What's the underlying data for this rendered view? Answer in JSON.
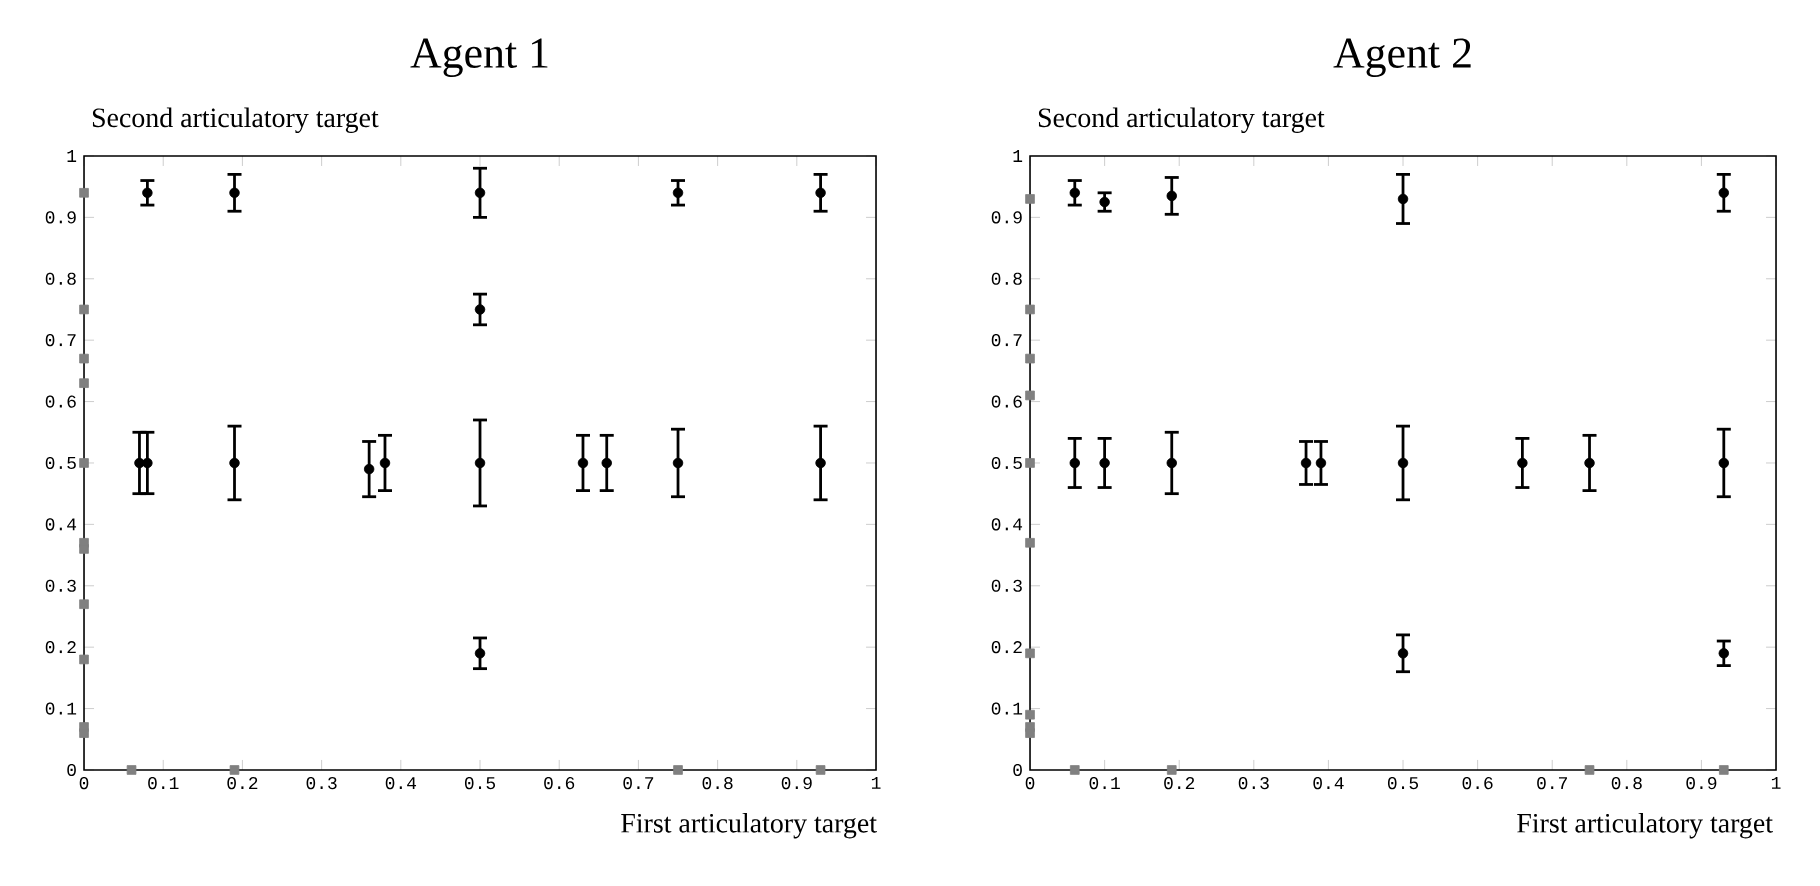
{
  "chart_data": [
    {
      "type": "scatter",
      "title": "Agent 1",
      "xlabel": "First articulatory target",
      "ylabel": "Second articulatory target",
      "xlim": [
        0,
        1
      ],
      "ylim": [
        0,
        1
      ],
      "xticks": [
        0,
        0.1,
        0.2,
        0.3,
        0.4,
        0.5,
        0.6,
        0.7,
        0.8,
        0.9,
        1
      ],
      "yticks": [
        0,
        0.1,
        0.2,
        0.3,
        0.4,
        0.5,
        0.6,
        0.7,
        0.8,
        0.9,
        1
      ],
      "grid": false,
      "legend": false,
      "series": [
        {
          "color": "#000000",
          "marker": "circle",
          "x": [
            0.07,
            0.08,
            0.08,
            0.19,
            0.19,
            0.36,
            0.38,
            0.5,
            0.5,
            0.5,
            0.5,
            0.63,
            0.66,
            0.75,
            0.75,
            0.93,
            0.93
          ],
          "values": [
            0.5,
            0.5,
            0.94,
            0.94,
            0.5,
            0.49,
            0.5,
            0.94,
            0.75,
            0.5,
            0.19,
            0.5,
            0.5,
            0.94,
            0.5,
            0.94,
            0.5
          ],
          "errors": [
            0.05,
            0.05,
            0.02,
            0.03,
            0.06,
            0.045,
            0.045,
            0.04,
            0.025,
            0.07,
            0.025,
            0.045,
            0.045,
            0.02,
            0.055,
            0.03,
            0.06
          ]
        },
        {
          "color": "#808080",
          "marker": "square",
          "x": [
            0,
            0,
            0,
            0,
            0,
            0,
            0,
            0,
            0,
            0,
            0,
            0.06,
            0.19,
            0.75,
            0.93
          ],
          "values": [
            0.94,
            0.75,
            0.67,
            0.63,
            0.5,
            0.37,
            0.36,
            0.27,
            0.18,
            0.07,
            0.06,
            0,
            0,
            0,
            0
          ]
        }
      ]
    },
    {
      "type": "scatter",
      "title": "Agent 2",
      "xlabel": "First articulatory target",
      "ylabel": "Second articulatory target",
      "xlim": [
        0,
        1
      ],
      "ylim": [
        0,
        1
      ],
      "xticks": [
        0,
        0.1,
        0.2,
        0.3,
        0.4,
        0.5,
        0.6,
        0.7,
        0.8,
        0.9,
        1
      ],
      "yticks": [
        0,
        0.1,
        0.2,
        0.3,
        0.4,
        0.5,
        0.6,
        0.7,
        0.8,
        0.9,
        1
      ],
      "grid": false,
      "legend": false,
      "series": [
        {
          "color": "#000000",
          "marker": "circle",
          "x": [
            0.06,
            0.1,
            0.19,
            0.06,
            0.1,
            0.19,
            0.37,
            0.39,
            0.5,
            0.5,
            0.5,
            0.66,
            0.75,
            0.93,
            0.93,
            0.93
          ],
          "values": [
            0.94,
            0.925,
            0.935,
            0.5,
            0.5,
            0.5,
            0.5,
            0.5,
            0.93,
            0.5,
            0.19,
            0.5,
            0.5,
            0.94,
            0.5,
            0.19
          ],
          "errors": [
            0.02,
            0.015,
            0.03,
            0.04,
            0.04,
            0.05,
            0.035,
            0.035,
            0.04,
            0.06,
            0.03,
            0.04,
            0.045,
            0.03,
            0.055,
            0.02
          ]
        },
        {
          "color": "#808080",
          "marker": "square",
          "x": [
            0,
            0,
            0,
            0,
            0,
            0,
            0,
            0,
            0,
            0,
            0.06,
            0.19,
            0.75,
            0.93
          ],
          "values": [
            0.93,
            0.75,
            0.67,
            0.61,
            0.5,
            0.37,
            0.19,
            0.09,
            0.07,
            0.06,
            0,
            0,
            0,
            0
          ]
        }
      ]
    }
  ]
}
